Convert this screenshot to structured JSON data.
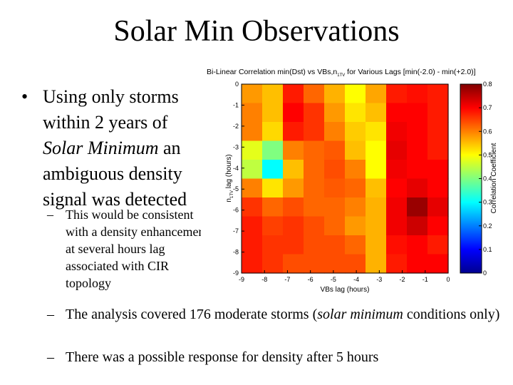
{
  "slide": {
    "title": "Solar Min Observations",
    "bullet_marker": "•",
    "dash_marker": "–",
    "main_bullet_text": "Using only storms within 2 years of ",
    "main_bullet_italic": "Solar Minimum",
    "main_bullet_after": " an ambiguous density signal was detected",
    "sub1": "This would be consistent with a density enhancement at several hours lag associated with CIR topology",
    "sub2_a": "The analysis covered 176 moderate storms (",
    "sub2_italic": "solar minimum",
    "sub2_b": " conditions only)",
    "sub3": "There was a possible response for density after 5 hours"
  },
  "chart_data": {
    "type": "heatmap",
    "title_a": "Bi-Linear Correlation min(Dst) vs VBs,n",
    "title_sub": "1TV",
    "title_b": " for Various Lags [min(-2.0) - min(+2.0)]",
    "xlabel": "VBs lag (hours)",
    "ylabel_a": "n",
    "ylabel_sub": "1TV",
    "ylabel_b": " lag (hours)",
    "x_ticks": [
      "-9",
      "-8",
      "-7",
      "-6",
      "-5",
      "-4",
      "-3",
      "-2",
      "-1",
      "0"
    ],
    "y_ticks": [
      "0",
      "-1",
      "-2",
      "-3",
      "-4",
      "-5",
      "-6",
      "-7",
      "-8",
      "-9"
    ],
    "colorbar_label": "Correlation Coefficient",
    "colorbar_ticks": [
      "0.8",
      "0.7",
      "0.6",
      "0.5",
      "0.4",
      "0.3",
      "0.2",
      "0.1",
      "0"
    ],
    "clim": [
      0,
      0.8
    ],
    "x_range": [
      -9,
      0
    ],
    "y_range": [
      -9,
      0
    ],
    "x": [
      -9,
      -8,
      -7,
      -6,
      -5,
      -4,
      -3,
      -2,
      -1,
      0
    ],
    "y": [
      0,
      -1,
      -2,
      -3,
      -4,
      -5,
      -6,
      -7,
      -8,
      -9
    ],
    "z": [
      [
        0.58,
        0.55,
        0.68,
        0.62,
        0.56,
        0.5,
        0.57,
        0.68,
        0.69,
        0.68
      ],
      [
        0.6,
        0.55,
        0.7,
        0.66,
        0.58,
        0.52,
        0.55,
        0.7,
        0.7,
        0.68
      ],
      [
        0.6,
        0.53,
        0.68,
        0.66,
        0.6,
        0.54,
        0.52,
        0.71,
        0.7,
        0.68
      ],
      [
        0.48,
        0.4,
        0.6,
        0.62,
        0.63,
        0.55,
        0.5,
        0.72,
        0.7,
        0.68
      ],
      [
        0.45,
        0.3,
        0.55,
        0.62,
        0.64,
        0.6,
        0.5,
        0.71,
        0.7,
        0.7
      ],
      [
        0.6,
        0.52,
        0.58,
        0.62,
        0.63,
        0.62,
        0.55,
        0.7,
        0.72,
        0.7
      ],
      [
        0.66,
        0.62,
        0.64,
        0.62,
        0.62,
        0.6,
        0.56,
        0.71,
        0.78,
        0.72
      ],
      [
        0.68,
        0.65,
        0.66,
        0.64,
        0.62,
        0.58,
        0.56,
        0.71,
        0.74,
        0.7
      ],
      [
        0.68,
        0.66,
        0.66,
        0.64,
        0.64,
        0.62,
        0.56,
        0.69,
        0.7,
        0.68
      ],
      [
        0.68,
        0.66,
        0.64,
        0.64,
        0.64,
        0.64,
        0.56,
        0.68,
        0.7,
        0.7
      ]
    ]
  }
}
